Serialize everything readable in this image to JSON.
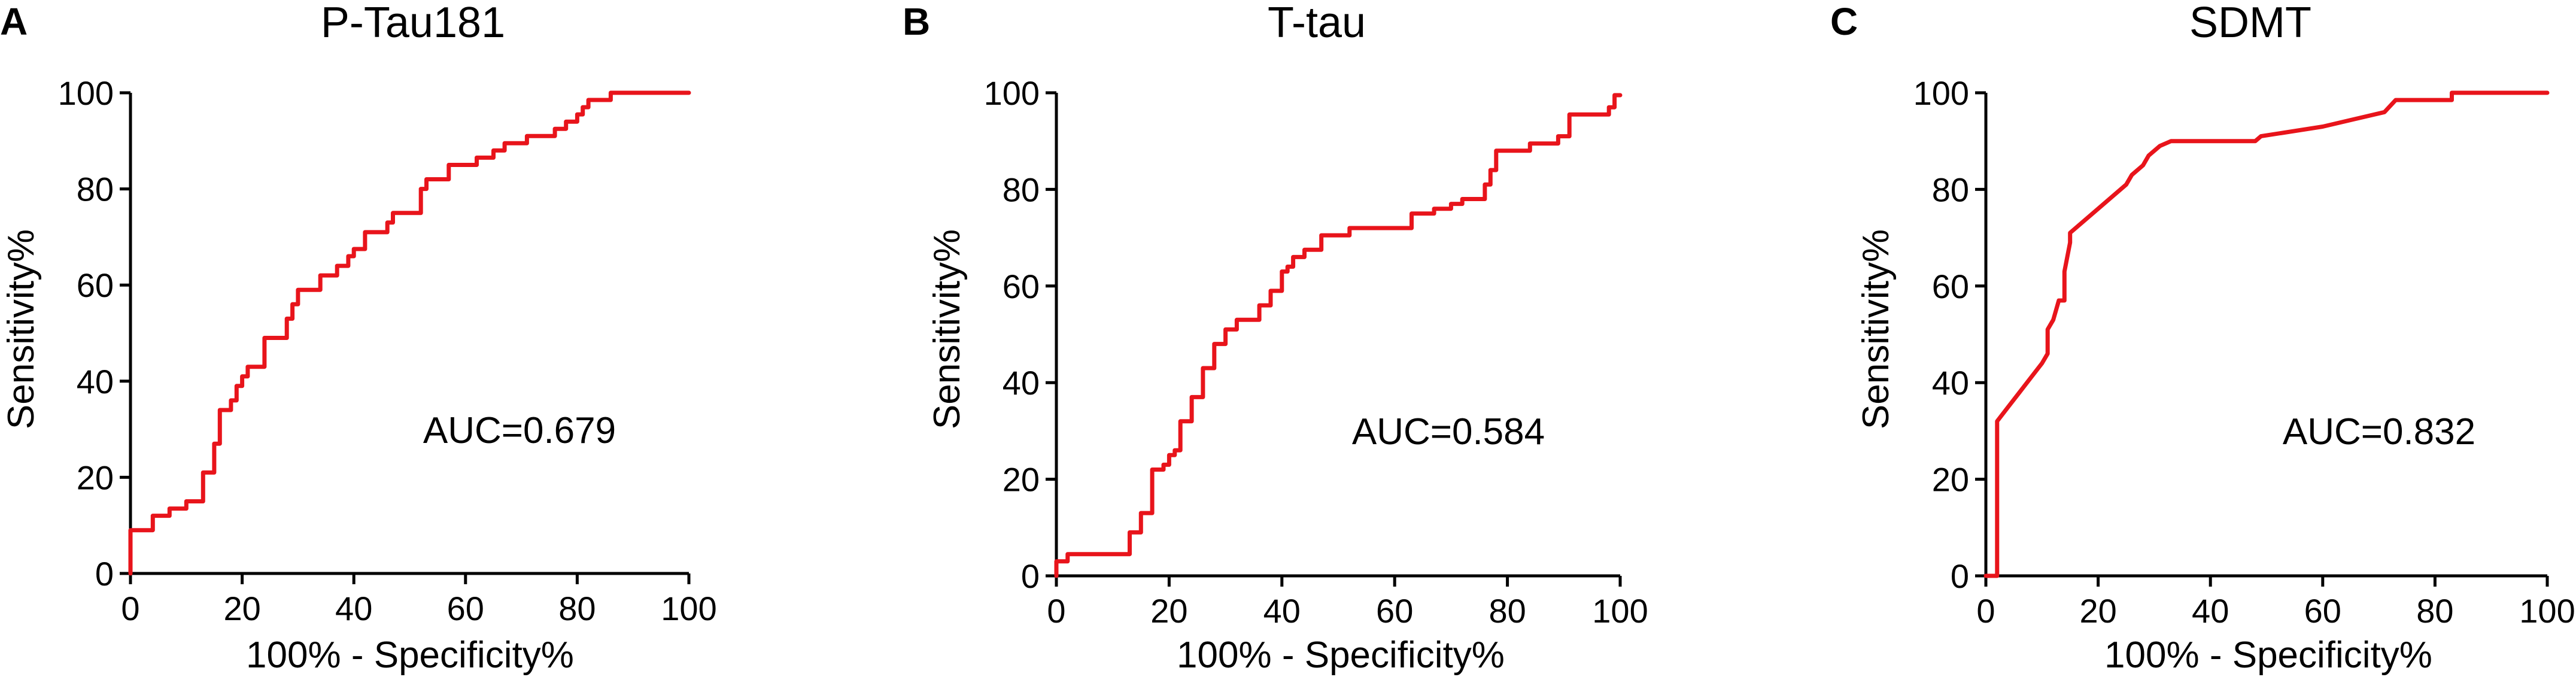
{
  "colors": {
    "curve": "#e8141b",
    "axis": "#000000"
  },
  "chart_data": [
    {
      "type": "line",
      "panel_label": "A",
      "title": "P-Tau181",
      "xlabel": "100% - Specificity%",
      "ylabel": "Sensitivity%",
      "xlim": [
        0,
        100
      ],
      "ylim": [
        0,
        100
      ],
      "x_ticks": [
        "0",
        "20",
        "40",
        "60",
        "80",
        "100"
      ],
      "y_ticks": [
        "0",
        "20",
        "40",
        "60",
        "80",
        "100"
      ],
      "annotation": "AUC=0.679",
      "grid": false,
      "series": [
        {
          "step": true,
          "points": [
            [
              0,
              0
            ],
            [
              0,
              9
            ],
            [
              4,
              9
            ],
            [
              4,
              12
            ],
            [
              7,
              12
            ],
            [
              7,
              13.5
            ],
            [
              10,
              13.5
            ],
            [
              10,
              15
            ],
            [
              13,
              15
            ],
            [
              13,
              21
            ],
            [
              15,
              21
            ],
            [
              15,
              27
            ],
            [
              16,
              27
            ],
            [
              16,
              34
            ],
            [
              18,
              34
            ],
            [
              18,
              36
            ],
            [
              19,
              36
            ],
            [
              19,
              39
            ],
            [
              20,
              39
            ],
            [
              20,
              41
            ],
            [
              21,
              41
            ],
            [
              21,
              43
            ],
            [
              24,
              43
            ],
            [
              24,
              49
            ],
            [
              28,
              49
            ],
            [
              28,
              53
            ],
            [
              29,
              53
            ],
            [
              29,
              56
            ],
            [
              30,
              56
            ],
            [
              30,
              59
            ],
            [
              34,
              59
            ],
            [
              34,
              62
            ],
            [
              37,
              62
            ],
            [
              37,
              64
            ],
            [
              39,
              64
            ],
            [
              39,
              66
            ],
            [
              40,
              66
            ],
            [
              40,
              67.5
            ],
            [
              42,
              67.5
            ],
            [
              42,
              71
            ],
            [
              46,
              71
            ],
            [
              46,
              73
            ],
            [
              47,
              73
            ],
            [
              47,
              75
            ],
            [
              52,
              75
            ],
            [
              52,
              80
            ],
            [
              53,
              80
            ],
            [
              53,
              82
            ],
            [
              57,
              82
            ],
            [
              57,
              85
            ],
            [
              62,
              85
            ],
            [
              62,
              86.5
            ],
            [
              65,
              86.5
            ],
            [
              65,
              88
            ],
            [
              67,
              88
            ],
            [
              67,
              89.5
            ],
            [
              71,
              89.5
            ],
            [
              71,
              91
            ],
            [
              76,
              91
            ],
            [
              76,
              92.5
            ],
            [
              78,
              92.5
            ],
            [
              78,
              94
            ],
            [
              80,
              94
            ],
            [
              80,
              95.5
            ],
            [
              81,
              95.5
            ],
            [
              81,
              97
            ],
            [
              82,
              97
            ],
            [
              82,
              98.5
            ],
            [
              86,
              98.5
            ],
            [
              86,
              100
            ],
            [
              100,
              100
            ]
          ]
        }
      ]
    },
    {
      "type": "line",
      "panel_label": "B",
      "title": "T-tau",
      "xlabel": "100% - Specificity%",
      "ylabel": "Sensitivity%",
      "xlim": [
        0,
        100
      ],
      "ylim": [
        0,
        100
      ],
      "x_ticks": [
        "0",
        "20",
        "40",
        "60",
        "80",
        "100"
      ],
      "y_ticks": [
        "0",
        "20",
        "40",
        "60",
        "80",
        "100"
      ],
      "annotation": "AUC=0.584",
      "grid": false,
      "series": [
        {
          "step": true,
          "points": [
            [
              0,
              0
            ],
            [
              0,
              3
            ],
            [
              2,
              3
            ],
            [
              2,
              4.5
            ],
            [
              13,
              4.5
            ],
            [
              13,
              9
            ],
            [
              15,
              9
            ],
            [
              15,
              13
            ],
            [
              17,
              13
            ],
            [
              17,
              22
            ],
            [
              19,
              22
            ],
            [
              19,
              23
            ],
            [
              20,
              23
            ],
            [
              20,
              25
            ],
            [
              21,
              25
            ],
            [
              21,
              26
            ],
            [
              22,
              26
            ],
            [
              22,
              32
            ],
            [
              24,
              32
            ],
            [
              24,
              37
            ],
            [
              26,
              37
            ],
            [
              26,
              43
            ],
            [
              28,
              43
            ],
            [
              28,
              48
            ],
            [
              30,
              48
            ],
            [
              30,
              51
            ],
            [
              32,
              51
            ],
            [
              32,
              53
            ],
            [
              36,
              53
            ],
            [
              36,
              56
            ],
            [
              38,
              56
            ],
            [
              38,
              59
            ],
            [
              40,
              59
            ],
            [
              40,
              63
            ],
            [
              41,
              63
            ],
            [
              41,
              64
            ],
            [
              42,
              64
            ],
            [
              42,
              66
            ],
            [
              44,
              66
            ],
            [
              44,
              67.5
            ],
            [
              47,
              67.5
            ],
            [
              47,
              70.5
            ],
            [
              52,
              70.5
            ],
            [
              52,
              72
            ],
            [
              63,
              72
            ],
            [
              63,
              75
            ],
            [
              67,
              75
            ],
            [
              67,
              76
            ],
            [
              70,
              76
            ],
            [
              70,
              77
            ],
            [
              72,
              77
            ],
            [
              72,
              78
            ],
            [
              76,
              78
            ],
            [
              76,
              81
            ],
            [
              77,
              81
            ],
            [
              77,
              84
            ],
            [
              78,
              84
            ],
            [
              78,
              88
            ],
            [
              84,
              88
            ],
            [
              84,
              89.5
            ],
            [
              89,
              89.5
            ],
            [
              89,
              91
            ],
            [
              91,
              91
            ],
            [
              91,
              95.5
            ],
            [
              98,
              95.5
            ],
            [
              98,
              97
            ],
            [
              99,
              97
            ],
            [
              99,
              99.5
            ],
            [
              100,
              99.5
            ]
          ]
        }
      ]
    },
    {
      "type": "line",
      "panel_label": "C",
      "title": "SDMT",
      "xlabel": "100% - Specificity%",
      "ylabel": "Sensitivity%",
      "xlim": [
        0,
        100
      ],
      "ylim": [
        0,
        100
      ],
      "x_ticks": [
        "0",
        "20",
        "40",
        "60",
        "80",
        "100"
      ],
      "y_ticks": [
        "0",
        "20",
        "40",
        "60",
        "80",
        "100"
      ],
      "annotation": "AUC=0.832",
      "grid": false,
      "series": [
        {
          "step": false,
          "points": [
            [
              0,
              0
            ],
            [
              2,
              0
            ],
            [
              2,
              32
            ],
            [
              4,
              35
            ],
            [
              6,
              38
            ],
            [
              8,
              41
            ],
            [
              10,
              44
            ],
            [
              11,
              46
            ],
            [
              11,
              51
            ],
            [
              12,
              53
            ],
            [
              13,
              57
            ],
            [
              14,
              57
            ],
            [
              14,
              63
            ],
            [
              15,
              69
            ],
            [
              15,
              71
            ],
            [
              20,
              76
            ],
            [
              25,
              81
            ],
            [
              26,
              83
            ],
            [
              28,
              85
            ],
            [
              29,
              87
            ],
            [
              31,
              89
            ],
            [
              33,
              90
            ],
            [
              48,
              90
            ],
            [
              49,
              91
            ],
            [
              60,
              93
            ],
            [
              71,
              96
            ],
            [
              73,
              98.5
            ],
            [
              83,
              98.5
            ],
            [
              83,
              100
            ],
            [
              100,
              100
            ]
          ]
        }
      ]
    }
  ]
}
